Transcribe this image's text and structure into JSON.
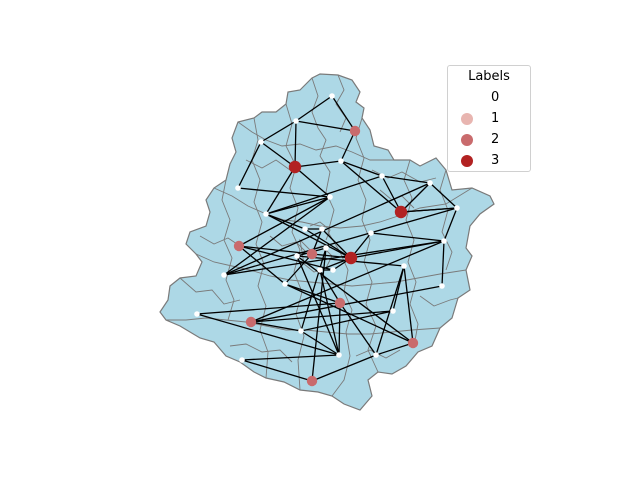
{
  "legend": {
    "title": "Labels",
    "entries": [
      {
        "label": "0",
        "color": "#ffffff"
      },
      {
        "label": "1",
        "color": "#e8b5b0"
      },
      {
        "label": "2",
        "color": "#c96b6d"
      },
      {
        "label": "3",
        "color": "#b22222"
      }
    ]
  },
  "colors": {
    "region_fill": "#add8e6",
    "region_border": "#7a7a7a",
    "edge": "#000000"
  },
  "chart_data": {
    "type": "network",
    "nodes": [
      {
        "id": 0,
        "label": 0
      },
      {
        "id": 1,
        "label": 2
      },
      {
        "id": 2,
        "label": 0
      },
      {
        "id": 3,
        "label": 0
      },
      {
        "id": 4,
        "label": 3
      },
      {
        "id": 5,
        "label": 0
      },
      {
        "id": 6,
        "label": 0
      },
      {
        "id": 7,
        "label": 0
      },
      {
        "id": 8,
        "label": 0
      },
      {
        "id": 9,
        "label": 0
      },
      {
        "id": 10,
        "label": 3
      },
      {
        "id": 11,
        "label": 0
      },
      {
        "id": 12,
        "label": 0
      },
      {
        "id": 13,
        "label": 2
      },
      {
        "id": 14,
        "label": 0
      },
      {
        "id": 15,
        "label": 0
      },
      {
        "id": 16,
        "label": 2
      },
      {
        "id": 17,
        "label": 0
      },
      {
        "id": 18,
        "label": 0
      },
      {
        "id": 19,
        "label": 3
      },
      {
        "id": 20,
        "label": 0
      },
      {
        "id": 21,
        "label": 0
      },
      {
        "id": 22,
        "label": 0
      },
      {
        "id": 23,
        "label": 0
      },
      {
        "id": 24,
        "label": 0
      },
      {
        "id": 25,
        "label": 0
      },
      {
        "id": 26,
        "label": 2
      },
      {
        "id": 27,
        "label": 0
      },
      {
        "id": 28,
        "label": 2
      },
      {
        "id": 29,
        "label": 0
      },
      {
        "id": 30,
        "label": 0
      },
      {
        "id": 31,
        "label": 2
      },
      {
        "id": 32,
        "label": 0
      },
      {
        "id": 33,
        "label": 0
      },
      {
        "id": 34,
        "label": 0
      },
      {
        "id": 35,
        "label": 2
      },
      {
        "id": 36,
        "label": 0
      },
      {
        "id": 37,
        "label": 0
      }
    ],
    "edges": [
      [
        0,
        1
      ],
      [
        0,
        2
      ],
      [
        2,
        1
      ],
      [
        2,
        3
      ],
      [
        2,
        4
      ],
      [
        3,
        4
      ],
      [
        1,
        5
      ],
      [
        4,
        5
      ],
      [
        5,
        6
      ],
      [
        4,
        8
      ],
      [
        4,
        9
      ],
      [
        3,
        7
      ],
      [
        7,
        9
      ],
      [
        9,
        8
      ],
      [
        8,
        6
      ],
      [
        6,
        10
      ],
      [
        5,
        10
      ],
      [
        6,
        11
      ],
      [
        10,
        11
      ],
      [
        10,
        12
      ],
      [
        12,
        11
      ],
      [
        11,
        14
      ],
      [
        9,
        14
      ],
      [
        14,
        12
      ],
      [
        8,
        15
      ],
      [
        15,
        17
      ],
      [
        17,
        16
      ],
      [
        16,
        13
      ],
      [
        15,
        19
      ],
      [
        17,
        19
      ],
      [
        18,
        19
      ],
      [
        20,
        19
      ],
      [
        16,
        19
      ],
      [
        19,
        21
      ],
      [
        8,
        19
      ],
      [
        9,
        13
      ],
      [
        13,
        22
      ],
      [
        22,
        16
      ],
      [
        13,
        20
      ],
      [
        20,
        18
      ],
      [
        18,
        26
      ],
      [
        22,
        26
      ],
      [
        26,
        27
      ],
      [
        19,
        24
      ],
      [
        21,
        24
      ],
      [
        24,
        25
      ],
      [
        12,
        24
      ],
      [
        14,
        24
      ],
      [
        24,
        28
      ],
      [
        25,
        28
      ],
      [
        28,
        29
      ],
      [
        22,
        31
      ],
      [
        31,
        32
      ],
      [
        32,
        26
      ],
      [
        31,
        23
      ],
      [
        23,
        29
      ],
      [
        23,
        32
      ],
      [
        29,
        30
      ],
      [
        28,
        30
      ],
      [
        30,
        33
      ],
      [
        33,
        34
      ],
      [
        34,
        35
      ],
      [
        32,
        35
      ],
      [
        33,
        36
      ],
      [
        36,
        31
      ],
      [
        36,
        37
      ],
      [
        37,
        35
      ],
      [
        30,
        37
      ],
      [
        33,
        26
      ],
      [
        33,
        18
      ],
      [
        23,
        36
      ],
      [
        10,
        12
      ],
      [
        27,
        33
      ]
    ]
  }
}
